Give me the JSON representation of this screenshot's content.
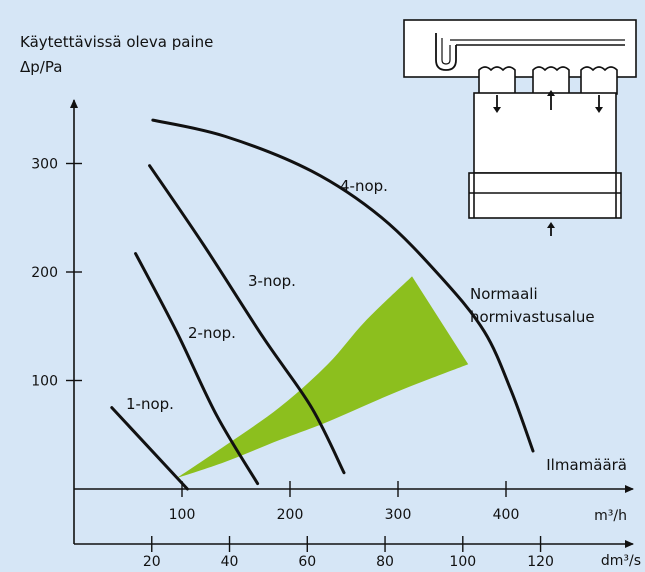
{
  "chart_data": {
    "type": "line",
    "ylabel_line1": "Käytettävissä oleva paine",
    "ylabel_line2": "Δp/Pa",
    "xlabel": "Ilmamäärä",
    "x_unit_primary": "m³/h",
    "x_unit_secondary": "dm³/s",
    "x_ticks_primary": [
      100,
      200,
      300,
      400
    ],
    "x_ticks_secondary": [
      20,
      40,
      60,
      80,
      100,
      120
    ],
    "y_ticks": [
      100,
      200,
      300
    ],
    "xlim": [
      0,
      440
    ],
    "ylim": [
      0,
      360
    ],
    "series": [
      {
        "name": "1-nop.",
        "points": [
          [
            -65,
            75
          ],
          [
            5,
            0
          ]
        ]
      },
      {
        "name": "2-nop.",
        "points": [
          [
            -43,
            217
          ],
          [
            -5,
            145
          ],
          [
            32,
            68
          ],
          [
            70,
            5
          ]
        ]
      },
      {
        "name": "3-nop.",
        "points": [
          [
            -30,
            298
          ],
          [
            20,
            225
          ],
          [
            75,
            140
          ],
          [
            120,
            75
          ],
          [
            150,
            15
          ]
        ]
      },
      {
        "name": "4-nop.",
        "points": [
          [
            -27,
            340
          ],
          [
            40,
            325
          ],
          [
            120,
            293
          ],
          [
            185,
            250
          ],
          [
            240,
            195
          ],
          [
            280,
            145
          ],
          [
            305,
            90
          ],
          [
            325,
            35
          ]
        ]
      }
    ],
    "band": {
      "label_line1": "Normaali",
      "label_line2": "hormivastusalue",
      "color": "#8cbf1e",
      "upper": [
        [
          -5,
          10
        ],
        [
          40,
          40
        ],
        [
          90,
          75
        ],
        [
          135,
          115
        ],
        [
          170,
          155
        ],
        [
          213,
          196
        ]
      ],
      "lower": [
        [
          -5,
          10
        ],
        [
          40,
          25
        ],
        [
          90,
          45
        ],
        [
          135,
          62
        ],
        [
          200,
          90
        ],
        [
          265,
          115
        ]
      ]
    },
    "background_color": "#d6e6f6",
    "grid": false
  }
}
